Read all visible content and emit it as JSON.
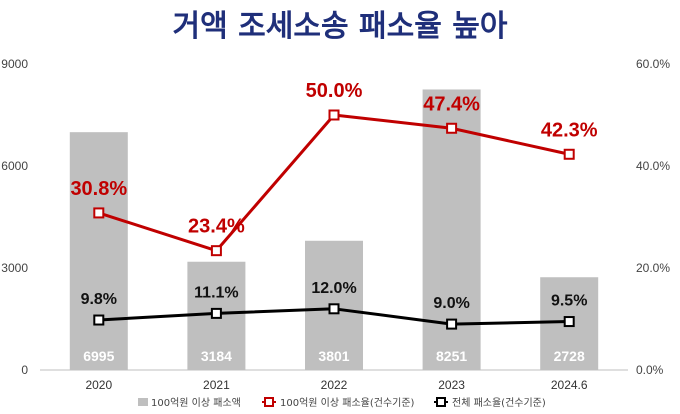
{
  "chart_data": {
    "type": "bar",
    "title": "거액 조세소송 패소율 높아",
    "categories": [
      "2020",
      "2021",
      "2022",
      "2023",
      "2024.6"
    ],
    "y_left": {
      "range": [
        0,
        9000
      ],
      "ticks": [
        "0",
        "3000",
        "6000",
        "9000"
      ]
    },
    "y_right": {
      "range": [
        0,
        60
      ],
      "ticks": [
        "0.0%",
        "20.0%",
        "40.0%",
        "60.0%"
      ]
    },
    "series": [
      {
        "name": "100억원 이상 패소액",
        "type": "bar",
        "axis": "left",
        "color": "#bfbfbf",
        "values": [
          6995,
          3184,
          3801,
          8251,
          2728
        ],
        "labels": [
          "6995",
          "3184",
          "3801",
          "8251",
          "2728"
        ]
      },
      {
        "name": "100억원 이상 패소율(건수기준)",
        "type": "line",
        "axis": "right",
        "color": "#c00000",
        "values": [
          30.8,
          23.4,
          50.0,
          47.4,
          42.3
        ],
        "labels": [
          "30.8%",
          "23.4%",
          "50.0%",
          "47.4%",
          "42.3%"
        ]
      },
      {
        "name": "전체 패소율(건수기준)",
        "type": "line",
        "axis": "right",
        "color": "#000000",
        "values": [
          9.8,
          11.1,
          12.0,
          9.0,
          9.5
        ],
        "labels": [
          "9.8%",
          "11.1%",
          "12.0%",
          "9.0%",
          "9.5%"
        ]
      }
    ],
    "grid": false,
    "legend": "bottom"
  }
}
